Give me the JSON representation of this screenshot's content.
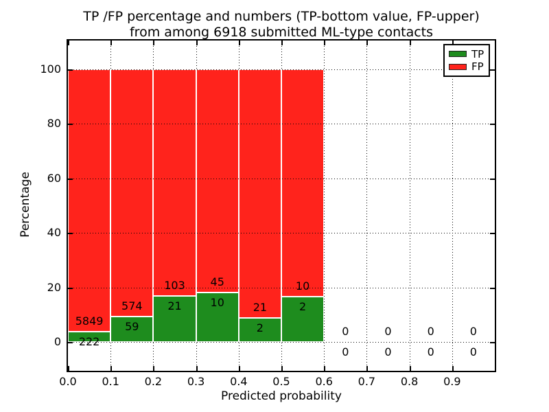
{
  "chart_data": {
    "type": "bar",
    "stacked": true,
    "title_line1": "TP /FP percentage and numbers (TP-bottom value, FP-upper)",
    "title_line2": "from among 6918 submitted ML-type contacts",
    "xlabel": "Predicted probability",
    "ylabel": "Percentage",
    "xlim": [
      0.0,
      1.0
    ],
    "ylim": [
      -11,
      110.4
    ],
    "x_tick_labels": [
      "0.0",
      "0.1",
      "0.2",
      "0.3",
      "0.4",
      "0.5",
      "0.6",
      "0.7",
      "0.8",
      "0.9"
    ],
    "y_ticks": [
      0,
      20,
      40,
      60,
      80,
      100
    ],
    "grid": "dotted",
    "total_label_sum": 6918,
    "legend": {
      "position": "upper right",
      "entries": [
        {
          "label": "TP",
          "color": "#1e8c1e"
        },
        {
          "label": "FP",
          "color": "#ff231c"
        }
      ]
    },
    "colors": {
      "tp": "#1e8c1e",
      "fp": "#ff231c",
      "bar_edge": "#ffffff"
    },
    "bins": [
      {
        "range": [
          0.0,
          0.1
        ],
        "tp": 222,
        "fp": 5849,
        "tp_pct": 3.66,
        "fp_pct": 96.34
      },
      {
        "range": [
          0.1,
          0.2
        ],
        "tp": 59,
        "fp": 574,
        "tp_pct": 9.32,
        "fp_pct": 90.68
      },
      {
        "range": [
          0.2,
          0.3
        ],
        "tp": 21,
        "fp": 103,
        "tp_pct": 16.94,
        "fp_pct": 83.06
      },
      {
        "range": [
          0.3,
          0.4
        ],
        "tp": 10,
        "fp": 45,
        "tp_pct": 18.18,
        "fp_pct": 81.82
      },
      {
        "range": [
          0.4,
          0.5
        ],
        "tp": 2,
        "fp": 21,
        "tp_pct": 8.7,
        "fp_pct": 91.3
      },
      {
        "range": [
          0.5,
          0.6
        ],
        "tp": 2,
        "fp": 10,
        "tp_pct": 16.67,
        "fp_pct": 83.33
      },
      {
        "range": [
          0.6,
          0.7
        ],
        "tp": 0,
        "fp": 0,
        "tp_pct": 0,
        "fp_pct": 0
      },
      {
        "range": [
          0.7,
          0.8
        ],
        "tp": 0,
        "fp": 0,
        "tp_pct": 0,
        "fp_pct": 0
      },
      {
        "range": [
          0.8,
          0.9
        ],
        "tp": 0,
        "fp": 0,
        "tp_pct": 0,
        "fp_pct": 0
      },
      {
        "range": [
          0.9,
          1.0
        ],
        "tp": 0,
        "fp": 0,
        "tp_pct": 0,
        "fp_pct": 0
      }
    ]
  }
}
